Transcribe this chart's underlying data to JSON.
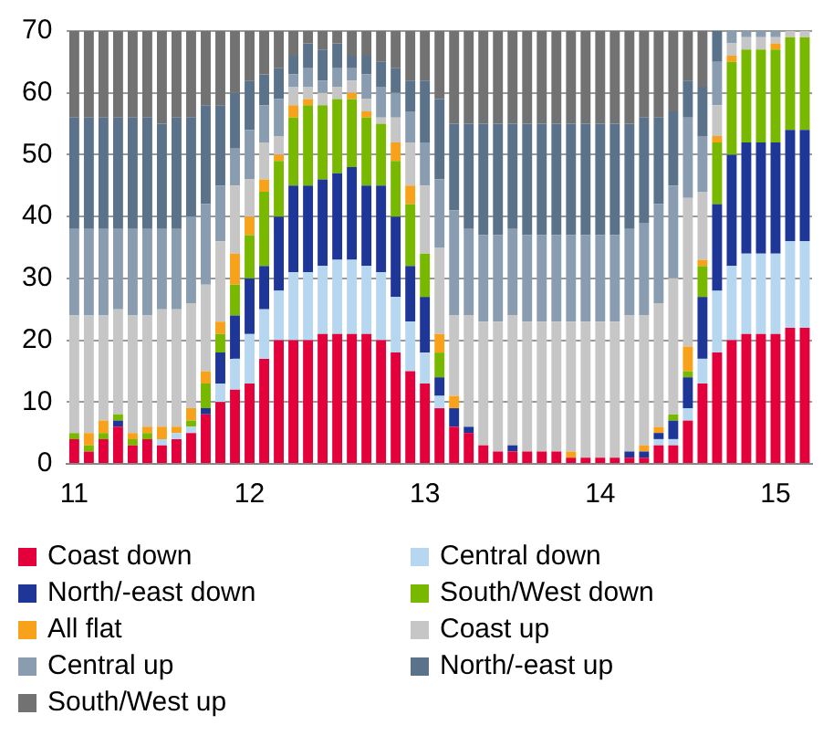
{
  "chart_data": {
    "type": "bar",
    "stacked": true,
    "grid": "y",
    "legend": "bottom",
    "ylim": [
      0,
      70
    ],
    "yticks": [
      0,
      10,
      20,
      30,
      40,
      50,
      60,
      70
    ],
    "categories": [
      "11",
      null,
      null,
      null,
      null,
      null,
      null,
      null,
      null,
      null,
      null,
      null,
      "12",
      null,
      null,
      null,
      null,
      null,
      null,
      null,
      null,
      null,
      null,
      null,
      "13",
      null,
      null,
      null,
      null,
      null,
      null,
      null,
      null,
      null,
      null,
      null,
      "14",
      null,
      null,
      null,
      null,
      null,
      null,
      null,
      null,
      null,
      null,
      null,
      "15",
      null,
      null
    ],
    "series": [
      {
        "name": "Coast down",
        "color": "#e4003a",
        "values": [
          4,
          2,
          4,
          6,
          3,
          4,
          3,
          4,
          5,
          8,
          10,
          12,
          13,
          17,
          20,
          20,
          20,
          21,
          21,
          21,
          21,
          20,
          18,
          15,
          13,
          9,
          6,
          5,
          3,
          2,
          2,
          2,
          2,
          2,
          1,
          1,
          1,
          1,
          1,
          1,
          3,
          3,
          7,
          13,
          18,
          20,
          21,
          21,
          21,
          22,
          22
        ]
      },
      {
        "name": "Central down",
        "color": "#b7d7f0",
        "values": [
          0,
          0,
          0,
          0,
          0,
          0,
          1,
          1,
          1,
          0,
          3,
          5,
          8,
          8,
          8,
          11,
          11,
          11,
          12,
          12,
          11,
          11,
          9,
          8,
          5,
          2,
          0,
          0,
          0,
          0,
          0,
          0,
          0,
          0,
          0,
          0,
          0,
          0,
          0,
          0,
          1,
          1,
          2,
          4,
          10,
          12,
          13,
          13,
          13,
          14,
          14
        ]
      },
      {
        "name": "North/-east down",
        "color": "#1f3699",
        "values": [
          0,
          0,
          0,
          1,
          0,
          0,
          0,
          0,
          0,
          1,
          5,
          7,
          9,
          7,
          12,
          14,
          14,
          14,
          14,
          15,
          13,
          14,
          13,
          9,
          9,
          3,
          3,
          1,
          0,
          0,
          1,
          0,
          0,
          0,
          0,
          0,
          0,
          0,
          1,
          1,
          1,
          3,
          5,
          10,
          14,
          18,
          18,
          18,
          18,
          18,
          18
        ]
      },
      {
        "name": "South/West down",
        "color": "#78b900",
        "values": [
          1,
          1,
          1,
          1,
          1,
          1,
          0,
          0,
          1,
          4,
          3,
          5,
          7,
          12,
          9,
          11,
          13,
          12,
          12,
          11,
          11,
          10,
          9,
          10,
          7,
          4,
          0,
          0,
          0,
          0,
          0,
          0,
          0,
          0,
          0,
          0,
          0,
          0,
          0,
          0,
          0,
          1,
          1,
          5,
          10,
          15,
          15,
          15,
          15,
          15,
          15
        ]
      },
      {
        "name": "All flat",
        "color": "#f7a21a",
        "values": [
          0,
          2,
          2,
          0,
          1,
          1,
          2,
          1,
          2,
          2,
          2,
          5,
          3,
          2,
          1,
          2,
          1,
          0,
          0,
          1,
          1,
          0,
          3,
          3,
          0,
          3,
          2,
          0,
          0,
          0,
          0,
          0,
          0,
          0,
          1,
          0,
          0,
          0,
          0,
          1,
          1,
          0,
          4,
          1,
          1,
          1,
          0,
          0,
          1,
          0,
          0
        ]
      },
      {
        "name": "Coast up",
        "color": "#c6c6c6",
        "values": [
          19,
          19,
          17,
          17,
          19,
          18,
          19,
          19,
          17,
          14,
          13,
          11,
          6,
          6,
          3,
          3,
          2,
          2,
          2,
          2,
          2,
          1,
          4,
          7,
          11,
          14,
          13,
          18,
          20,
          21,
          21,
          21,
          21,
          21,
          21,
          22,
          22,
          22,
          22,
          21,
          20,
          22,
          24,
          11,
          5,
          2,
          2,
          2,
          1,
          1,
          1
        ]
      },
      {
        "name": "Central up",
        "color": "#8a9db0",
        "values": [
          14,
          14,
          14,
          13,
          14,
          14,
          13,
          13,
          14,
          13,
          9,
          6,
          8,
          6,
          6,
          2,
          3,
          2,
          3,
          2,
          4,
          5,
          4,
          5,
          7,
          11,
          17,
          14,
          14,
          14,
          14,
          14,
          14,
          14,
          14,
          14,
          14,
          14,
          14,
          15,
          16,
          15,
          13,
          9,
          7,
          2,
          1,
          1,
          1,
          0,
          0
        ]
      },
      {
        "name": "North/-east up",
        "color": "#5b738a",
        "values": [
          18,
          18,
          18,
          18,
          18,
          18,
          17,
          18,
          16,
          16,
          13,
          9,
          8,
          5,
          5,
          3,
          4,
          5,
          4,
          2,
          3,
          4,
          4,
          5,
          10,
          13,
          14,
          17,
          18,
          18,
          17,
          18,
          18,
          18,
          18,
          18,
          18,
          18,
          17,
          17,
          14,
          12,
          6,
          8,
          5,
          0,
          0,
          0,
          0,
          0,
          0
        ]
      },
      {
        "name": "South/West up",
        "color": "#727272",
        "values": [
          14,
          14,
          14,
          14,
          14,
          14,
          15,
          14,
          14,
          12,
          12,
          10,
          8,
          7,
          6,
          4,
          2,
          3,
          2,
          4,
          4,
          5,
          6,
          8,
          8,
          11,
          15,
          15,
          15,
          15,
          15,
          15,
          15,
          15,
          15,
          15,
          15,
          15,
          15,
          14,
          14,
          13,
          8,
          9,
          0,
          0,
          0,
          0,
          0,
          0,
          0
        ]
      }
    ]
  }
}
